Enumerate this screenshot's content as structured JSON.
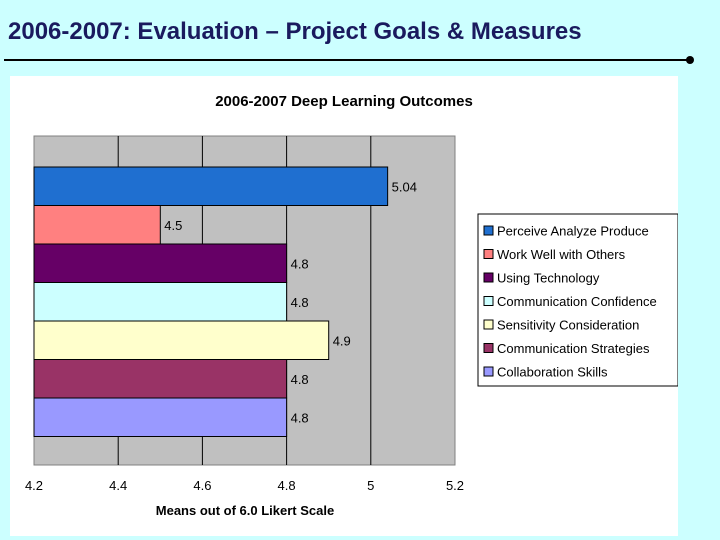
{
  "slide": {
    "title": "2006-2007: Evaluation – Project Goals & Measures"
  },
  "colors": {
    "background": "#ccffff",
    "plot_area": "#c0c0c0",
    "title": "#1a1a5e"
  },
  "chart_data": {
    "type": "bar",
    "orientation": "horizontal",
    "title": "2006-2007 Deep Learning Outcomes",
    "xlabel": "Means out of 6.0 Likert Scale",
    "ylabel": "",
    "xlim": [
      4.2,
      5.2
    ],
    "xticks": [
      4.2,
      4.4,
      4.6,
      4.8,
      5,
      5.2
    ],
    "grid": true,
    "legend_position": "right",
    "series": [
      {
        "name": "Perceive Analyze Produce",
        "value": 5.04,
        "label": "5.04",
        "color": "#1f6fd0"
      },
      {
        "name": "Work Well with Others",
        "value": 4.5,
        "label": "4.5",
        "color": "#ff8080"
      },
      {
        "name": "Using Technology",
        "value": 4.8,
        "label": "4.8",
        "color": "#660066"
      },
      {
        "name": "Communication Confidence",
        "value": 4.8,
        "label": "4.8",
        "color": "#ccffff"
      },
      {
        "name": "Sensitivity Consideration",
        "value": 4.9,
        "label": "4.9",
        "color": "#ffffcc"
      },
      {
        "name": "Communication Strategies",
        "value": 4.8,
        "label": "4.8",
        "color": "#993366"
      },
      {
        "name": "Collaboration Skills",
        "value": 4.8,
        "label": "4.8",
        "color": "#9999ff"
      }
    ]
  }
}
